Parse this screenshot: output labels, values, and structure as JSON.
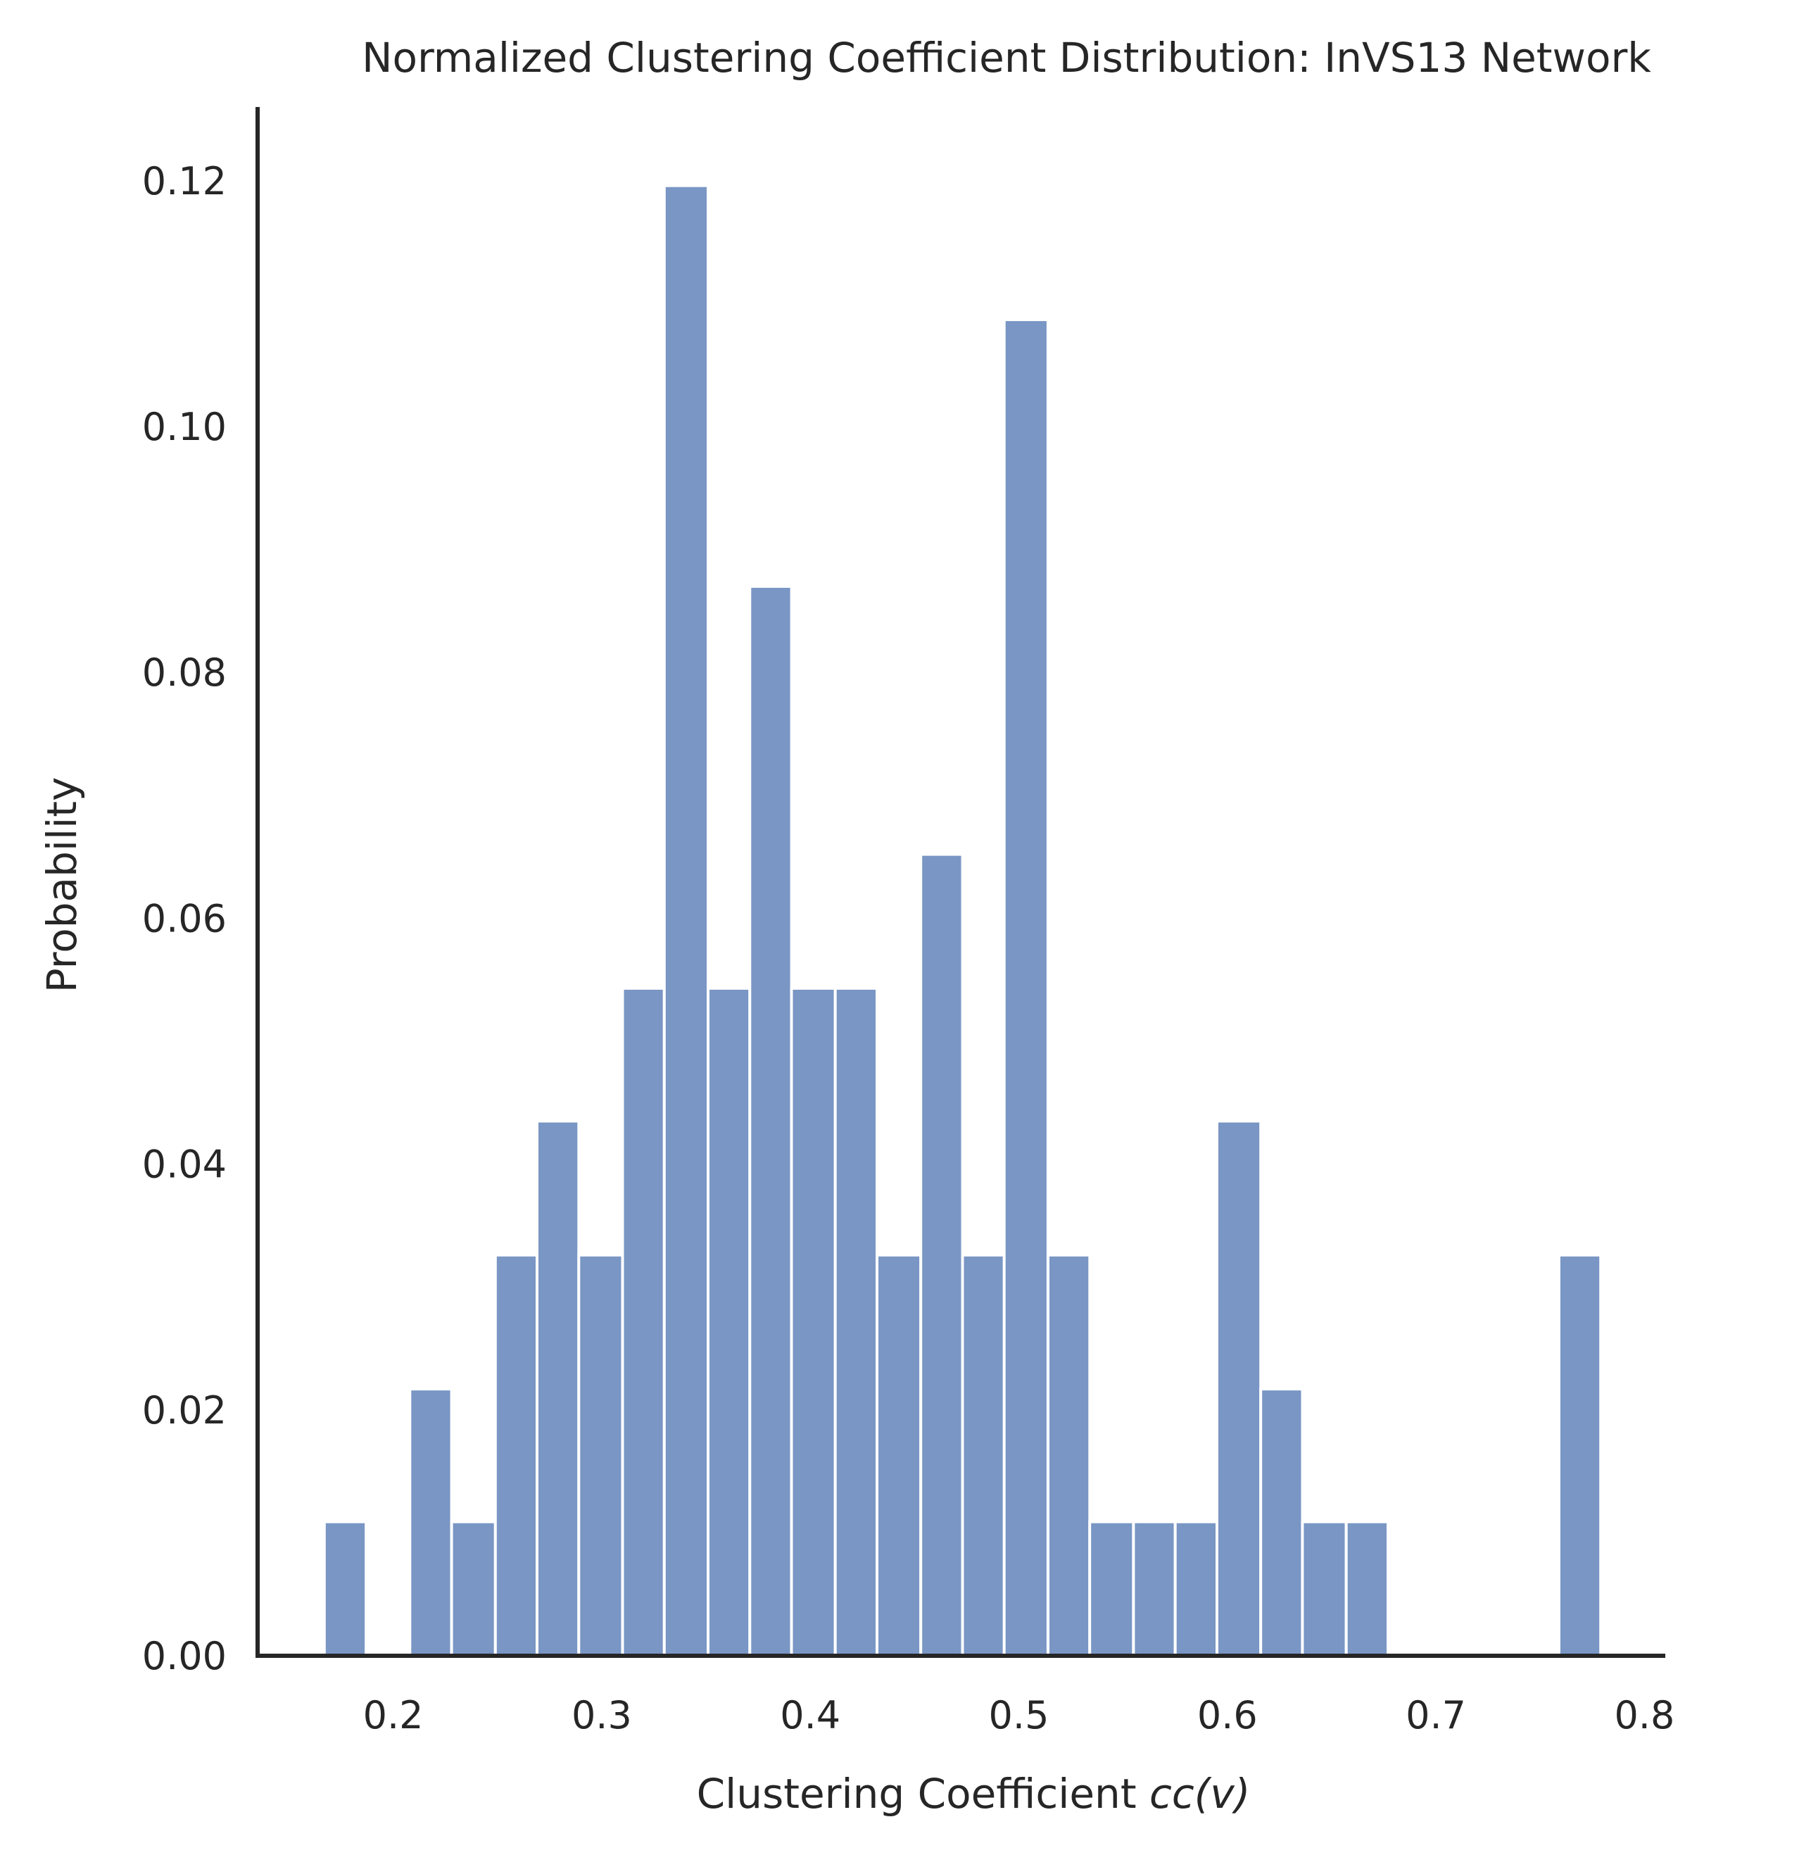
{
  "chart_data": {
    "type": "bar",
    "title": "Normalized Clustering Coefficient Distribution: InVS13 Network",
    "xlabel": "Clustering Coefficient ",
    "xlabel_math": "cc(v)",
    "ylabel": "Probability",
    "xlim": [
      0.135,
      0.81
    ],
    "ylim": [
      0,
      0.126
    ],
    "x_ticks": [
      0.2,
      0.3,
      0.4,
      0.5,
      0.6,
      0.7,
      0.8
    ],
    "x_tick_labels": [
      "0.2",
      "0.3",
      "0.4",
      "0.5",
      "0.6",
      "0.7",
      "0.8"
    ],
    "y_ticks": [
      0,
      0.02,
      0.04,
      0.06,
      0.08,
      0.1,
      0.12
    ],
    "y_tick_labels": [
      "0.00",
      "0.02",
      "0.04",
      "0.06",
      "0.08",
      "0.10",
      "0.12"
    ],
    "grid": false,
    "bar_color": "#7996c4",
    "bin_edges_start": 0.167,
    "bin_width": 0.0204,
    "bins": [
      {
        "x0": 0.167,
        "x1": 0.187,
        "value": 0.0109
      },
      {
        "x0": 0.187,
        "x1": 0.208,
        "value": 0.0
      },
      {
        "x0": 0.208,
        "x1": 0.228,
        "value": 0.0217
      },
      {
        "x0": 0.228,
        "x1": 0.249,
        "value": 0.0109
      },
      {
        "x0": 0.249,
        "x1": 0.269,
        "value": 0.0326
      },
      {
        "x0": 0.269,
        "x1": 0.289,
        "value": 0.0435
      },
      {
        "x0": 0.289,
        "x1": 0.31,
        "value": 0.0326
      },
      {
        "x0": 0.31,
        "x1": 0.33,
        "value": 0.0543
      },
      {
        "x0": 0.33,
        "x1": 0.351,
        "value": 0.1196
      },
      {
        "x0": 0.351,
        "x1": 0.371,
        "value": 0.0543
      },
      {
        "x0": 0.371,
        "x1": 0.391,
        "value": 0.087
      },
      {
        "x0": 0.391,
        "x1": 0.412,
        "value": 0.0543
      },
      {
        "x0": 0.412,
        "x1": 0.432,
        "value": 0.0543
      },
      {
        "x0": 0.432,
        "x1": 0.453,
        "value": 0.0326
      },
      {
        "x0": 0.453,
        "x1": 0.473,
        "value": 0.0652
      },
      {
        "x0": 0.473,
        "x1": 0.493,
        "value": 0.0326
      },
      {
        "x0": 0.493,
        "x1": 0.514,
        "value": 0.1087
      },
      {
        "x0": 0.514,
        "x1": 0.534,
        "value": 0.0326
      },
      {
        "x0": 0.534,
        "x1": 0.555,
        "value": 0.0109
      },
      {
        "x0": 0.555,
        "x1": 0.575,
        "value": 0.0109
      },
      {
        "x0": 0.575,
        "x1": 0.595,
        "value": 0.0109
      },
      {
        "x0": 0.595,
        "x1": 0.616,
        "value": 0.0435
      },
      {
        "x0": 0.616,
        "x1": 0.636,
        "value": 0.0217
      },
      {
        "x0": 0.636,
        "x1": 0.657,
        "value": 0.0109
      },
      {
        "x0": 0.657,
        "x1": 0.677,
        "value": 0.0109
      },
      {
        "x0": 0.677,
        "x1": 0.697,
        "value": 0.0
      },
      {
        "x0": 0.697,
        "x1": 0.718,
        "value": 0.0
      },
      {
        "x0": 0.718,
        "x1": 0.738,
        "value": 0.0
      },
      {
        "x0": 0.738,
        "x1": 0.759,
        "value": 0.0
      },
      {
        "x0": 0.759,
        "x1": 0.779,
        "value": 0.0326
      }
    ]
  }
}
